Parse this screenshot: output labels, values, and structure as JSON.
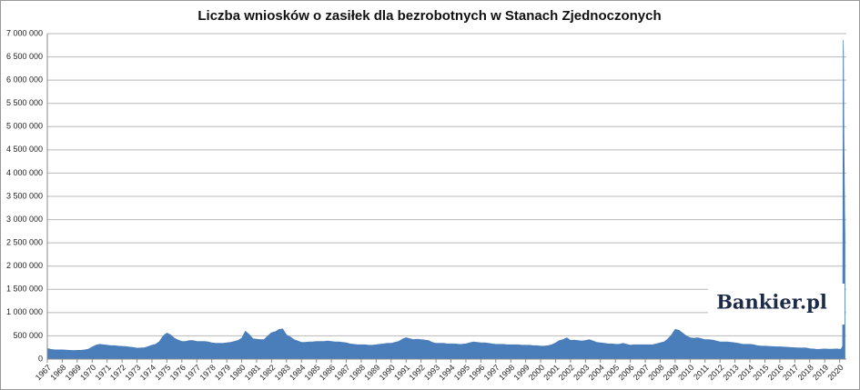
{
  "chart_data": {
    "type": "area",
    "title": "Liczba wniosków o zasiłek dla bezrobotnych w Stanach Zjednoczonych",
    "watermark": "Bankier.pl",
    "color": "#4a7ebb",
    "grid": true,
    "xlim": [
      1967,
      2020.45
    ],
    "ylim": [
      0,
      7000000
    ],
    "xticks": [
      1967,
      1968,
      1969,
      1970,
      1971,
      1972,
      1973,
      1974,
      1975,
      1976,
      1977,
      1978,
      1979,
      1980,
      1981,
      1982,
      1983,
      1984,
      1985,
      1986,
      1987,
      1988,
      1989,
      1990,
      1991,
      1992,
      1993,
      1994,
      1995,
      1996,
      1997,
      1998,
      1999,
      2000,
      2001,
      2002,
      2003,
      2004,
      2005,
      2006,
      2007,
      2008,
      2009,
      2010,
      2011,
      2012,
      2013,
      2014,
      2015,
      2016,
      2017,
      2018,
      2019,
      2020
    ],
    "yticks": [
      0,
      {
        "value": 500000,
        "label": "500 000"
      },
      {
        "value": 1000000,
        "label": "1 000 000"
      },
      {
        "value": 1500000,
        "label": "1 500 000"
      },
      {
        "value": 2000000,
        "label": "2 000 000"
      },
      {
        "value": 2500000,
        "label": "2 500 000"
      },
      {
        "value": 3000000,
        "label": "3 000 000"
      },
      {
        "value": 3500000,
        "label": "3 500 000"
      },
      {
        "value": 4000000,
        "label": "4 000 000"
      },
      {
        "value": 4500000,
        "label": "4 500 000"
      },
      {
        "value": 5000000,
        "label": "5 000 000"
      },
      {
        "value": 5500000,
        "label": "5 500 000"
      },
      {
        "value": 6000000,
        "label": "6 000 000"
      },
      {
        "value": 6500000,
        "label": "6 500 000"
      },
      {
        "value": 7000000,
        "label": "7 000 000"
      }
    ],
    "x": [
      1967,
      1967.25,
      1967.5,
      1967.75,
      1968,
      1968.25,
      1968.5,
      1968.75,
      1969,
      1969.25,
      1969.5,
      1969.75,
      1970,
      1970.25,
      1970.5,
      1970.75,
      1971,
      1971.25,
      1971.5,
      1971.75,
      1972,
      1972.25,
      1972.5,
      1972.75,
      1973,
      1973.25,
      1973.5,
      1973.75,
      1974,
      1974.25,
      1974.5,
      1974.75,
      1975,
      1975.25,
      1975.5,
      1975.75,
      1976,
      1976.25,
      1976.5,
      1976.75,
      1977,
      1977.25,
      1977.5,
      1977.75,
      1978,
      1978.25,
      1978.5,
      1978.75,
      1979,
      1979.25,
      1979.5,
      1979.75,
      1980,
      1980.25,
      1980.5,
      1980.75,
      1981,
      1981.25,
      1981.5,
      1981.75,
      1982,
      1982.25,
      1982.5,
      1982.75,
      1983,
      1983.25,
      1983.5,
      1983.75,
      1984,
      1984.25,
      1984.5,
      1984.75,
      1985,
      1985.25,
      1985.5,
      1985.75,
      1986,
      1986.25,
      1986.5,
      1986.75,
      1987,
      1987.25,
      1987.5,
      1987.75,
      1988,
      1988.25,
      1988.5,
      1988.75,
      1989,
      1989.25,
      1989.5,
      1989.75,
      1990,
      1990.25,
      1990.5,
      1990.75,
      1991,
      1991.25,
      1991.5,
      1991.75,
      1992,
      1992.25,
      1992.5,
      1992.75,
      1993,
      1993.25,
      1993.5,
      1993.75,
      1994,
      1994.25,
      1994.5,
      1994.75,
      1995,
      1995.25,
      1995.5,
      1995.75,
      1996,
      1996.25,
      1996.5,
      1996.75,
      1997,
      1997.25,
      1997.5,
      1997.75,
      1998,
      1998.25,
      1998.5,
      1998.75,
      1999,
      1999.25,
      1999.5,
      1999.75,
      2000,
      2000.25,
      2000.5,
      2000.75,
      2001,
      2001.25,
      2001.5,
      2001.75,
      2002,
      2002.25,
      2002.5,
      2002.75,
      2003,
      2003.25,
      2003.5,
      2003.75,
      2004,
      2004.25,
      2004.5,
      2004.75,
      2005,
      2005.25,
      2005.5,
      2005.75,
      2006,
      2006.25,
      2006.5,
      2006.75,
      2007,
      2007.25,
      2007.5,
      2007.75,
      2008,
      2008.25,
      2008.5,
      2008.75,
      2009,
      2009.25,
      2009.5,
      2009.75,
      2010,
      2010.25,
      2010.5,
      2010.75,
      2011,
      2011.25,
      2011.5,
      2011.75,
      2012,
      2012.25,
      2012.5,
      2012.75,
      2013,
      2013.25,
      2013.5,
      2013.75,
      2014,
      2014.25,
      2014.5,
      2014.75,
      2015,
      2015.25,
      2015.5,
      2015.75,
      2016,
      2016.25,
      2016.5,
      2016.75,
      2017,
      2017.25,
      2017.5,
      2017.75,
      2018,
      2018.25,
      2018.5,
      2018.75,
      2019,
      2019.25,
      2019.5,
      2019.75,
      2020,
      2020.1,
      2020.2,
      2020.22,
      2020.24,
      2020.26,
      2020.28,
      2020.3,
      2020.32,
      2020.34,
      2020.36
    ],
    "values": [
      230000,
      210000,
      200000,
      200000,
      200000,
      195000,
      190000,
      185000,
      190000,
      190000,
      200000,
      215000,
      260000,
      300000,
      320000,
      310000,
      300000,
      290000,
      290000,
      280000,
      275000,
      270000,
      260000,
      250000,
      235000,
      240000,
      245000,
      270000,
      300000,
      320000,
      380000,
      500000,
      560000,
      520000,
      450000,
      410000,
      380000,
      380000,
      400000,
      400000,
      380000,
      380000,
      380000,
      370000,
      350000,
      340000,
      340000,
      340000,
      350000,
      360000,
      380000,
      400000,
      450000,
      600000,
      530000,
      440000,
      430000,
      420000,
      420000,
      500000,
      570000,
      590000,
      640000,
      650000,
      520000,
      480000,
      420000,
      390000,
      360000,
      360000,
      370000,
      370000,
      380000,
      380000,
      380000,
      390000,
      380000,
      370000,
      370000,
      360000,
      350000,
      330000,
      320000,
      310000,
      310000,
      310000,
      300000,
      300000,
      310000,
      320000,
      330000,
      340000,
      340000,
      360000,
      380000,
      430000,
      460000,
      440000,
      420000,
      430000,
      420000,
      410000,
      400000,
      360000,
      340000,
      340000,
      340000,
      330000,
      330000,
      330000,
      320000,
      320000,
      330000,
      350000,
      370000,
      360000,
      350000,
      350000,
      340000,
      330000,
      320000,
      320000,
      320000,
      310000,
      310000,
      310000,
      310000,
      300000,
      300000,
      300000,
      290000,
      290000,
      280000,
      280000,
      290000,
      310000,
      350000,
      400000,
      420000,
      460000,
      400000,
      410000,
      400000,
      390000,
      400000,
      420000,
      390000,
      360000,
      350000,
      340000,
      330000,
      330000,
      320000,
      320000,
      340000,
      320000,
      300000,
      310000,
      310000,
      310000,
      310000,
      310000,
      310000,
      330000,
      350000,
      370000,
      430000,
      520000,
      640000,
      620000,
      560000,
      500000,
      460000,
      450000,
      460000,
      440000,
      420000,
      420000,
      410000,
      390000,
      370000,
      370000,
      370000,
      360000,
      350000,
      340000,
      320000,
      320000,
      320000,
      310000,
      290000,
      280000,
      280000,
      275000,
      270000,
      265000,
      265000,
      260000,
      255000,
      250000,
      245000,
      240000,
      240000,
      240000,
      225000,
      220000,
      210000,
      215000,
      220000,
      215000,
      215000,
      220000,
      215000,
      215000,
      282000,
      3307000,
      6867000,
      6615000,
      5237000,
      4442000,
      3867000,
      3176000,
      2687000
    ]
  }
}
